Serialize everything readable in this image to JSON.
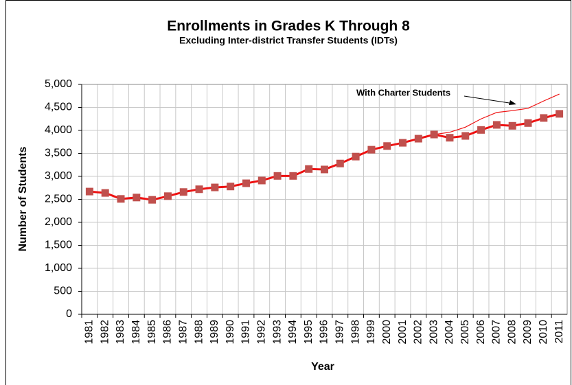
{
  "chart_data": {
    "type": "line",
    "title": "Enrollments in Grades K Through 8",
    "subtitle": "Excluding Inter-district Transfer Students (IDTs)",
    "x_label": "Year",
    "y_label": "Number of Students",
    "categories": [
      "1981",
      "1982",
      "1983",
      "1984",
      "1985",
      "1986",
      "1987",
      "1988",
      "1989",
      "1990",
      "1991",
      "1992",
      "1993",
      "1994",
      "1995",
      "1996",
      "1997",
      "1998",
      "1999",
      "2000",
      "2001",
      "2002",
      "2003",
      "2004",
      "2005",
      "2006",
      "2007",
      "2008",
      "2009",
      "2010",
      "2011"
    ],
    "series": [
      {
        "color": "#ee1111",
        "marker_color": "#c0504d",
        "marker": "square",
        "values": [
          2670,
          2640,
          2510,
          2540,
          2490,
          2570,
          2660,
          2720,
          2760,
          2780,
          2850,
          2910,
          3010,
          3010,
          3160,
          3150,
          3280,
          3430,
          3580,
          3660,
          3730,
          3820,
          3910,
          3840,
          3880,
          4010,
          4120,
          4100,
          4160,
          4270,
          4360
        ]
      },
      {
        "name": "With Charter Students",
        "color": "#ee1111",
        "values": [
          null,
          null,
          null,
          null,
          null,
          null,
          null,
          null,
          null,
          null,
          null,
          null,
          null,
          null,
          null,
          null,
          null,
          null,
          null,
          null,
          null,
          null,
          3910,
          3960,
          4070,
          4250,
          4390,
          4430,
          4480,
          4640,
          4790
        ]
      }
    ],
    "ylim": [
      0,
      5000
    ],
    "yticks": [
      0,
      500,
      {
        "value": 1000,
        "label": "1,000"
      },
      {
        "value": 1500,
        "label": "1,500"
      },
      {
        "value": 2000,
        "label": "2,000"
      },
      {
        "value": 2500,
        "label": "2,500"
      },
      {
        "value": 3000,
        "label": "3,000"
      },
      {
        "value": 3500,
        "label": "3,500"
      },
      {
        "value": 4000,
        "label": "4,000"
      },
      {
        "value": 4500,
        "label": "4,500"
      },
      {
        "value": 5000,
        "label": "5,000"
      }
    ],
    "grid": true
  }
}
